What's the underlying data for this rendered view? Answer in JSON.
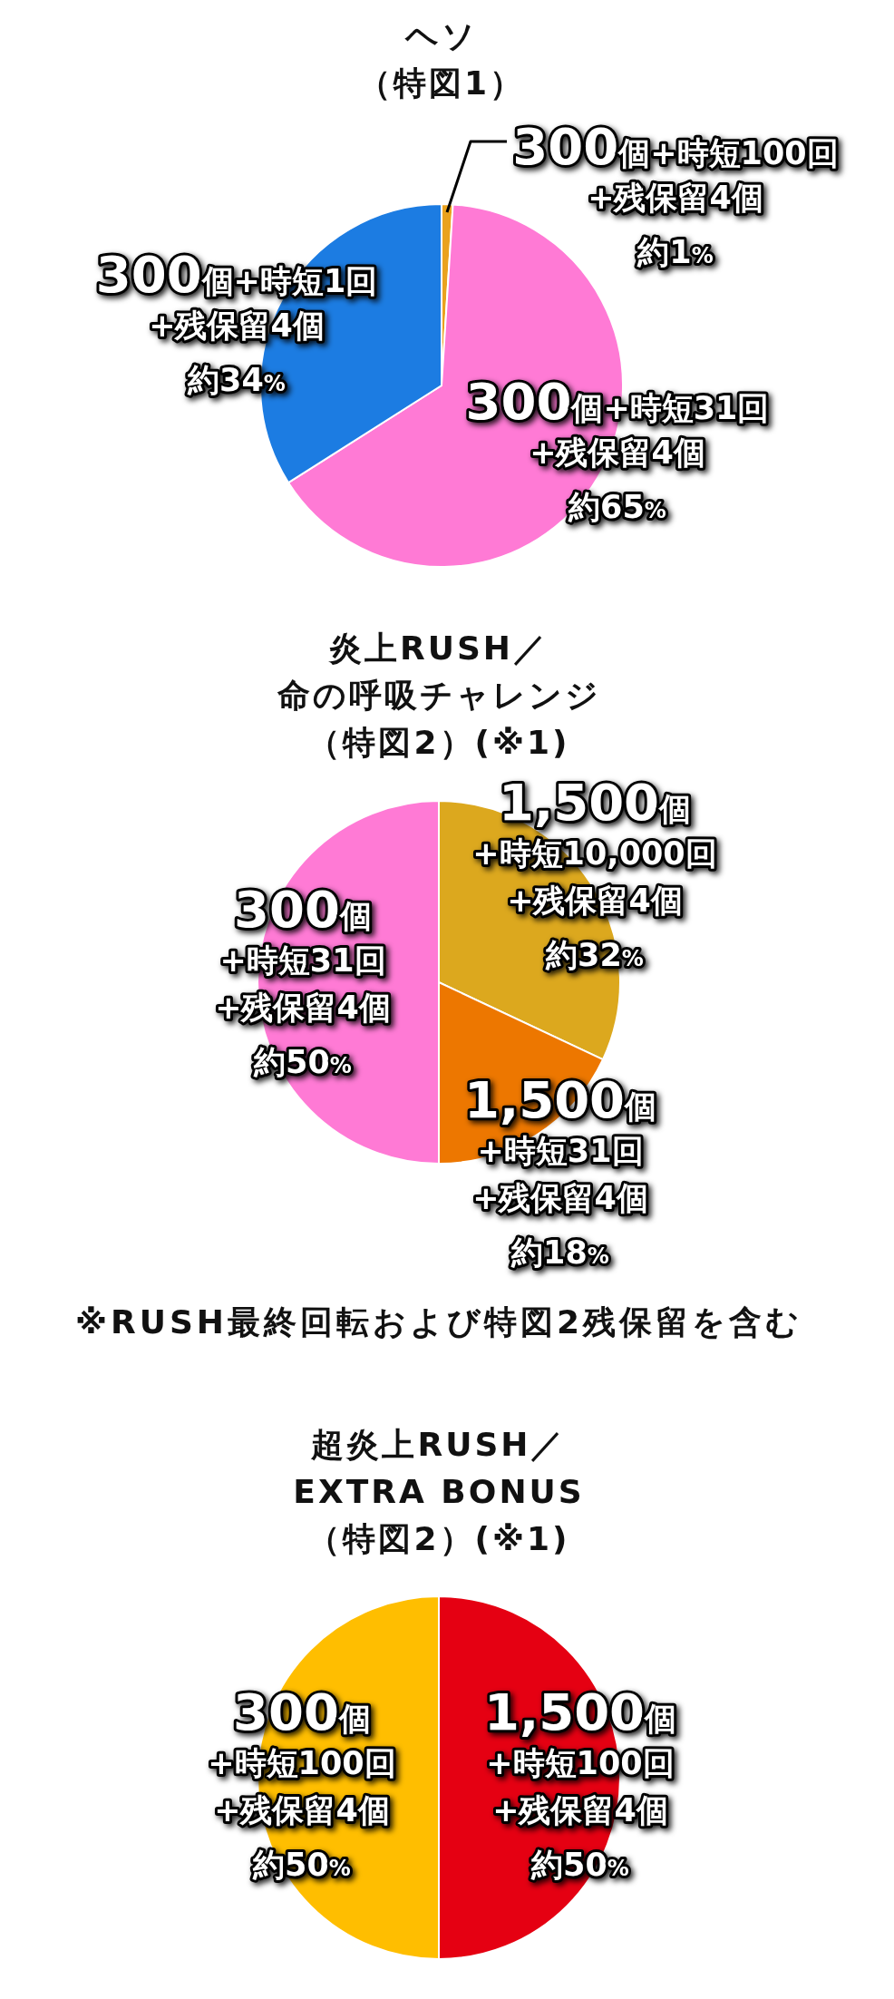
{
  "chart_data": [
    {
      "type": "pie",
      "title": "ヘソ（特図1）",
      "categories": [
        "300個+時短100回\n+残保留4個",
        "300個+時短31回\n+残保留4個",
        "300個+時短1回\n+残保留4個"
      ],
      "values": [
        1,
        65,
        34
      ],
      "colors": [
        "#eaa21e",
        "#ff7ad5",
        "#1c7ce2"
      ],
      "value_labels": [
        "約1%",
        "約65%",
        "約34%"
      ]
    },
    {
      "type": "pie",
      "title": "炎上RUSH／命の呼吸チャレンジ（特図2）(※1)",
      "categories": [
        "1,500個\n+時短10,000回\n+残保留4個",
        "1,500個\n+時短31回\n+残保留4個",
        "300個\n+時短31回\n+残保留4個"
      ],
      "values": [
        32,
        18,
        50
      ],
      "colors": [
        "#dca81e",
        "#ed7700",
        "#ff7ad5"
      ],
      "value_labels": [
        "約32%",
        "約18%",
        "約50%"
      ],
      "annotations": [
        "※RUSH最終回転および特図2残保留を含む"
      ]
    },
    {
      "type": "pie",
      "title": "超炎上RUSH／EXTRA BONUS（特図2）(※1)",
      "categories": [
        "1,500個\n+時短100回\n+残保留4個",
        "300個\n+時短100回\n+残保留4個"
      ],
      "values": [
        50,
        50
      ],
      "colors": [
        "#e50012",
        "#ffbe00"
      ],
      "value_labels": [
        "約50%",
        "約50%"
      ]
    }
  ]
}
